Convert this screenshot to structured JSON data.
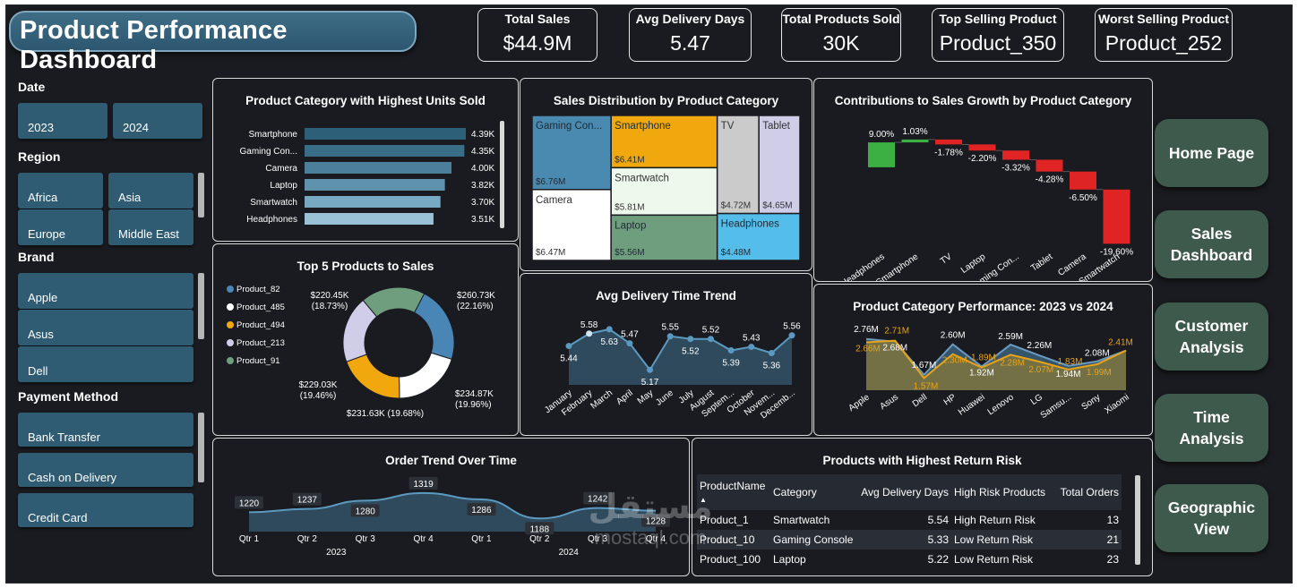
{
  "title": "Product Performance Dashboard",
  "kpis": [
    {
      "label": "Total Sales",
      "value": "$44.9M"
    },
    {
      "label": "Avg Delivery Days",
      "value": "5.47"
    },
    {
      "label": "Total Products Sold",
      "value": "30K"
    },
    {
      "label": "Top Selling Product",
      "value": "Product_350"
    },
    {
      "label": "Worst Selling Product",
      "value": "Product_252"
    }
  ],
  "slicers": {
    "date": {
      "label": "Date",
      "options": [
        "2023",
        "2024"
      ]
    },
    "region": {
      "label": "Region",
      "options": [
        "Africa",
        "Asia",
        "Europe",
        "Middle East"
      ]
    },
    "brand": {
      "label": "Brand",
      "options": [
        "Apple",
        "Asus",
        "Dell"
      ]
    },
    "payment": {
      "label": "Payment Method",
      "options": [
        "Bank Transfer",
        "Cash on Delivery",
        "Credit Card"
      ]
    }
  },
  "nav": [
    "Home Page",
    "Sales Dashboard",
    "Customer Analysis",
    "Time Analysis",
    "Geographic View"
  ],
  "colors": {
    "bg": "#1a1b20",
    "slicer": "#2f5c72",
    "nav": "#3e5a4c",
    "accent_orange": "#e8a317",
    "increase": "#3cb043",
    "decrease": "#e02424"
  },
  "chart_data": [
    {
      "type": "bar",
      "title": "Product Category with Highest Units Sold",
      "categories": [
        "Smartphone",
        "Gaming Con...",
        "Camera",
        "Laptop",
        "Smartwatch",
        "Headphones"
      ],
      "values": [
        4.39,
        4.35,
        4.0,
        3.82,
        3.7,
        3.51
      ],
      "data_labels": [
        "4.39K",
        "4.35K",
        "4.00K",
        "3.82K",
        "3.70K",
        "3.51K"
      ]
    },
    {
      "type": "treemap",
      "title": "Sales Distribution by Product Category",
      "items": [
        {
          "name": "Gaming Con...",
          "label": "$6.76M",
          "value": 6.76,
          "color": "#4a8ab0"
        },
        {
          "name": "Smartphone",
          "label": "$6.41M",
          "value": 6.41,
          "color": "#f0a80e"
        },
        {
          "name": "TV",
          "label": "$4.72M",
          "value": 4.72,
          "color": "#cbcbcb"
        },
        {
          "name": "Tablet",
          "label": "$4.65M",
          "value": 4.65,
          "color": "#cfcde8"
        },
        {
          "name": "Camera",
          "label": "$6.47M",
          "value": 6.47,
          "color": "#ffffff"
        },
        {
          "name": "Smartwatch",
          "label": "$5.81M",
          "value": 5.81,
          "color": "#eef9ee"
        },
        {
          "name": "Laptop",
          "label": "$5.56M",
          "value": 5.56,
          "color": "#6f9e7f"
        },
        {
          "name": "Headphones",
          "label": "$4.48M",
          "value": 4.48,
          "color": "#55bdea"
        }
      ]
    },
    {
      "type": "waterfall",
      "title": "Contributions to Sales Growth by Product Category",
      "categories": [
        "Headphones",
        "Smartphone",
        "TV",
        "Laptop",
        "Gaming Con...",
        "Tablet",
        "Camera",
        "Smartwatch"
      ],
      "values": [
        9.0,
        1.03,
        -1.78,
        -2.2,
        -3.32,
        -4.28,
        -6.5,
        -19.6
      ],
      "data_labels": [
        "9.00%",
        "1.03%",
        "-1.78%",
        "-2.20%",
        "-3.32%",
        "-4.28%",
        "-6.50%",
        "-19.60%"
      ]
    },
    {
      "type": "pie",
      "title": "Top 5 Products to Sales",
      "slices": [
        {
          "name": "Product_82",
          "value": 260.73,
          "label": "$260.73K\n(22.16%)",
          "color": "#4a86b5"
        },
        {
          "name": "Product_485",
          "value": 234.87,
          "label": "$234.87K\n(19.96%)",
          "color": "#ffffff"
        },
        {
          "name": "Product_494",
          "value": 231.63,
          "label": "$231.63K (19.68%)",
          "color": "#f0a80e"
        },
        {
          "name": "Product_213",
          "value": 229.03,
          "label": "$229.03K\n(19.46%)",
          "color": "#cfcde8"
        },
        {
          "name": "Product_91",
          "value": 220.45,
          "label": "$220.45K\n(18.73%)",
          "color": "#6f9e7f"
        }
      ]
    },
    {
      "type": "area",
      "title": "Avg Delivery Time Trend",
      "categories": [
        "January",
        "February",
        "March",
        "April",
        "May",
        "June",
        "July",
        "August",
        "Septem...",
        "October",
        "Novem...",
        "Decemb..."
      ],
      "values": [
        5.44,
        5.58,
        5.63,
        5.47,
        5.17,
        5.55,
        5.52,
        5.52,
        5.39,
        5.43,
        5.36,
        5.56
      ],
      "data_labels": [
        "5.44",
        "5.58",
        "5.63",
        "5.47",
        "5.17",
        "5.55",
        "5.52",
        "5.52",
        "5.39",
        "5.43",
        "5.36",
        "5.56"
      ]
    },
    {
      "type": "area",
      "title": "Product Category Performance: 2023 vs 2024",
      "categories": [
        "Apple",
        "Asus",
        "Dell",
        "HP",
        "Huawei",
        "Lenovo",
        "LG",
        "Samsu...",
        "Sony",
        "Xiaomi"
      ],
      "series": [
        {
          "name": "2023",
          "values": [
            2.76,
            2.68,
            1.67,
            2.6,
            1.92,
            2.59,
            2.26,
            1.94,
            2.08,
            2.41
          ],
          "labels": [
            "2.76M",
            "2.68M",
            "1.67M",
            "2.60M",
            "1.92M",
            "2.59M",
            "2.26M",
            "1.94M",
            "2.08M",
            ""
          ]
        },
        {
          "name": "2024",
          "values": [
            2.66,
            2.71,
            1.57,
            2.3,
            1.89,
            2.28,
            2.07,
            1.83,
            1.99,
            2.41
          ],
          "labels": [
            "2.66M",
            "2.71M",
            "1.57M",
            "2.30M",
            "1.89M",
            "2.28M",
            "2.07M",
            "1.83M",
            "1.99M",
            "2.41M"
          ]
        }
      ]
    },
    {
      "type": "area",
      "title": "Order Trend Over Time",
      "categories": [
        "Qtr 1",
        "Qtr 2",
        "Qtr 3",
        "Qtr 4",
        "Qtr 1",
        "Qtr 2",
        "Qtr 3",
        "Qtr 4"
      ],
      "years": [
        "2023",
        "2024"
      ],
      "values": [
        1220,
        1237,
        1280,
        1319,
        1286,
        1188,
        1242,
        1228
      ],
      "data_labels": [
        "1220",
        "1237",
        "1280",
        "1319",
        "1286",
        "1188",
        "1242",
        "1228"
      ]
    },
    {
      "type": "table",
      "title": "Products with Highest Return Risk",
      "columns": [
        "ProductName",
        "Category",
        "Avg Delivery Days",
        "High Risk Products",
        "Total Orders"
      ],
      "rows": [
        [
          "Product_1",
          "Smartwatch",
          "5.54",
          "High Return Risk",
          "13"
        ],
        [
          "Product_10",
          "Gaming Console",
          "5.33",
          "Low Return Risk",
          "21"
        ],
        [
          "Product_100",
          "Laptop",
          "5.22",
          "Low Return Risk",
          "23"
        ]
      ]
    }
  ],
  "watermark": {
    "arabic": "مستقل",
    "latin": "mostaql.com"
  }
}
